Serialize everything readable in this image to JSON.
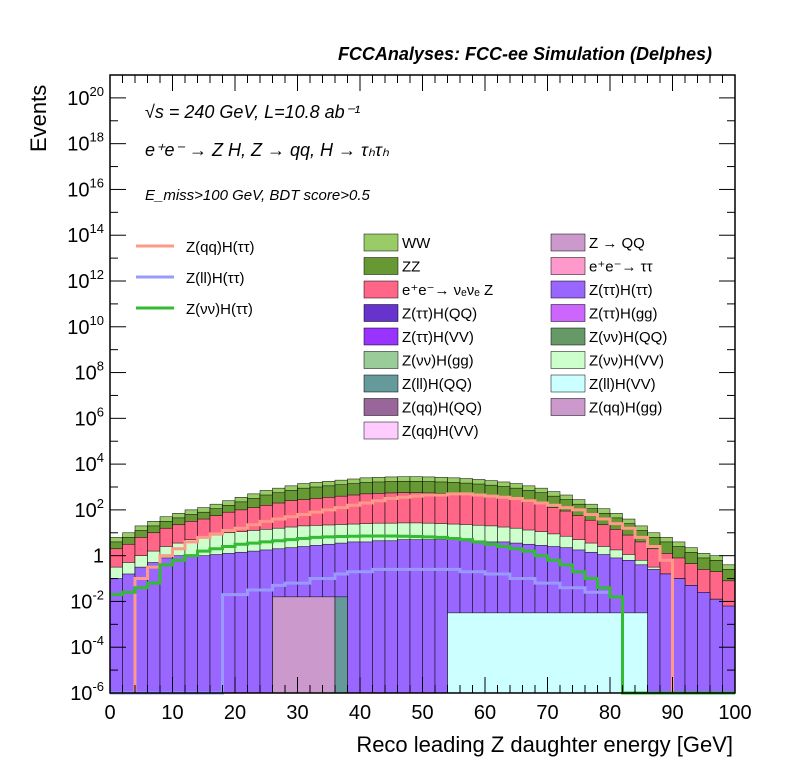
{
  "chart_data": {
    "type": "bar",
    "stacked": true,
    "title": "FCCAnalyses: FCC-ee Simulation (Delphes)",
    "annotations": [
      "√s = 240 GeV, L=10.8 ab⁻¹",
      "e⁺e⁻ → Z H, Z → qq, H → τₕτₕ",
      "E_miss>100 GeV, BDT score>0.5"
    ],
    "xlabel": "Reco leading Z daughter energy [GeV]",
    "ylabel": "Events",
    "xlim": [
      0,
      100
    ],
    "ylog": true,
    "ylim_exp": [
      -6,
      21
    ],
    "x_ticks": [
      0,
      10,
      20,
      30,
      40,
      50,
      60,
      70,
      80,
      90,
      100
    ],
    "y_ticks": [
      {
        "exp": -6,
        "label": "10",
        "sup": "-6"
      },
      {
        "exp": -4,
        "label": "10",
        "sup": "-4"
      },
      {
        "exp": -2,
        "label": "10",
        "sup": "-2"
      },
      {
        "exp": 0,
        "label": "1",
        "sup": ""
      },
      {
        "exp": 2,
        "label": "10",
        "sup": "2"
      },
      {
        "exp": 4,
        "label": "10",
        "sup": "4"
      },
      {
        "exp": 6,
        "label": "10",
        "sup": "6"
      },
      {
        "exp": 8,
        "label": "10",
        "sup": "8"
      },
      {
        "exp": 10,
        "label": "10",
        "sup": "10"
      },
      {
        "exp": 12,
        "label": "10",
        "sup": "12"
      },
      {
        "exp": 14,
        "label": "10",
        "sup": "14"
      },
      {
        "exp": 16,
        "label": "10",
        "sup": "16"
      },
      {
        "exp": 18,
        "label": "10",
        "sup": "18"
      },
      {
        "exp": 20,
        "label": "10",
        "sup": "20"
      }
    ],
    "bin_width": 2,
    "legend_position": "top",
    "backgrounds_total_log10": [
      0.8,
      1.0,
      1.3,
      1.5,
      1.7,
      1.85,
      2.0,
      2.1,
      2.25,
      2.4,
      2.55,
      2.7,
      2.85,
      2.95,
      3.05,
      3.15,
      3.2,
      3.25,
      3.3,
      3.35,
      3.4,
      3.42,
      3.44,
      3.45,
      3.45,
      3.44,
      3.42,
      3.4,
      3.37,
      3.33,
      3.28,
      3.22,
      3.15,
      3.05,
      2.95,
      2.8,
      2.65,
      2.45,
      2.25,
      2.05,
      1.85,
      1.6,
      1.3,
      1.0,
      0.8,
      0.6,
      0.35,
      0.1,
      0.0,
      -0.4
    ],
    "backgrounds": [
      {
        "name": "Z(ττ)H(ττ)",
        "color": "#9966ff",
        "log10": [
          -1.0,
          -0.8,
          -0.5,
          -0.3,
          -0.1,
          0.0,
          0.0,
          0.0,
          0.05,
          0.1,
          0.15,
          0.2,
          0.25,
          0.3,
          0.35,
          0.4,
          0.45,
          0.5,
          0.55,
          0.6,
          0.6,
          0.65,
          0.65,
          0.7,
          0.7,
          0.7,
          0.7,
          0.7,
          0.65,
          0.65,
          0.6,
          0.6,
          0.55,
          0.5,
          0.45,
          0.4,
          0.35,
          0.25,
          0.15,
          0.05,
          -0.1,
          -0.2,
          -0.4,
          -0.6,
          -0.8,
          -1.0,
          -1.3,
          -1.6,
          -1.9,
          -2.2
        ]
      },
      {
        "name": "Z(νν)H(VV)",
        "color": "#ccffcc",
        "log10": [
          -0.5,
          -0.3,
          0.0,
          0.2,
          0.4,
          0.55,
          0.7,
          0.8,
          0.9,
          1.0,
          1.05,
          1.1,
          1.15,
          1.2,
          1.25,
          1.3,
          1.32,
          1.34,
          1.36,
          1.38,
          1.4,
          1.42,
          1.42,
          1.43,
          1.43,
          1.42,
          1.4,
          1.38,
          1.36,
          1.33,
          1.3,
          1.25,
          1.2,
          1.12,
          1.05,
          0.95,
          0.85,
          0.7,
          0.55,
          0.4,
          0.25,
          0.05,
          -0.2,
          -0.5,
          -0.8,
          -1.0,
          -1.3,
          -1.6,
          -1.9,
          -2.3
        ]
      },
      {
        "name": "e⁺e⁻→ νₑνₑ Z",
        "color": "#ff6688",
        "log10": [
          0.3,
          0.5,
          0.8,
          1.0,
          1.2,
          1.35,
          1.5,
          1.6,
          1.75,
          1.9,
          2.0,
          2.1,
          2.2,
          2.3,
          2.4,
          2.45,
          2.5,
          2.55,
          2.6,
          2.65,
          2.7,
          2.72,
          2.74,
          2.75,
          2.75,
          2.74,
          2.72,
          2.7,
          2.67,
          2.63,
          2.58,
          2.52,
          2.45,
          2.35,
          2.25,
          2.1,
          1.95,
          1.75,
          1.55,
          1.35,
          1.15,
          0.9,
          0.6,
          0.3,
          0.1,
          -0.1,
          -0.35,
          -0.6,
          -0.7,
          -1.1
        ]
      },
      {
        "name": "ZZ",
        "color": "#669933",
        "log10": [
          0.6,
          0.8,
          1.1,
          1.3,
          1.5,
          1.65,
          1.8,
          1.9,
          2.05,
          2.2,
          2.35,
          2.5,
          2.65,
          2.75,
          2.85,
          2.95,
          3.0,
          3.05,
          3.1,
          3.15,
          3.2,
          3.22,
          3.24,
          3.25,
          3.25,
          3.24,
          3.22,
          3.2,
          3.17,
          3.13,
          3.08,
          3.02,
          2.95,
          2.85,
          2.75,
          2.6,
          2.45,
          2.25,
          2.05,
          1.85,
          1.65,
          1.4,
          1.1,
          0.8,
          0.6,
          0.4,
          0.15,
          -0.1,
          -0.2,
          -0.6
        ]
      },
      {
        "name": "WW",
        "color": "#99cc66",
        "log10": [
          0.8,
          1.0,
          1.3,
          1.5,
          1.7,
          1.85,
          2.0,
          2.1,
          2.25,
          2.4,
          2.55,
          2.7,
          2.85,
          2.95,
          3.05,
          3.15,
          3.2,
          3.25,
          3.3,
          3.35,
          3.4,
          3.42,
          3.44,
          3.45,
          3.45,
          3.44,
          3.42,
          3.4,
          3.37,
          3.33,
          3.28,
          3.22,
          3.15,
          3.05,
          2.95,
          2.8,
          2.65,
          2.45,
          2.25,
          2.05,
          1.85,
          1.6,
          1.3,
          1.0,
          0.8,
          0.6,
          0.35,
          0.1,
          0.0,
          -0.4
        ]
      }
    ],
    "low_components": [
      {
        "name": "Z(ll)H(VV)",
        "color": "#ccffff",
        "start": 54,
        "end": 86,
        "log10": -2.5
      },
      {
        "name": "Z(qq)H(gg)",
        "color": "#cc99cc",
        "start": 26,
        "end": 36,
        "log10": -1.8
      },
      {
        "name": "Z(ll)H(QQ)",
        "color": "#669999",
        "start": 36,
        "end": 38,
        "log10": -1.8
      }
    ],
    "legend": [
      {
        "name": "WW",
        "color": "#99cc66"
      },
      {
        "name": "Z → QQ",
        "color": "#cc99cc"
      },
      {
        "name": "ZZ",
        "color": "#669933"
      },
      {
        "name": "e⁺e⁻→ ττ",
        "color": "#ff99cc"
      },
      {
        "name": "e⁺e⁻→ νₑνₑ Z",
        "color": "#ff6688"
      },
      {
        "name": "Z(ττ)H(ττ)",
        "color": "#9966ff"
      },
      {
        "name": "Z(ττ)H(QQ)",
        "color": "#6633cc"
      },
      {
        "name": "Z(ττ)H(gg)",
        "color": "#cc66ff"
      },
      {
        "name": "Z(ττ)H(VV)",
        "color": "#9933ff"
      },
      {
        "name": "Z(νν)H(QQ)",
        "color": "#669966"
      },
      {
        "name": "Z(νν)H(gg)",
        "color": "#99cc99"
      },
      {
        "name": "Z(νν)H(VV)",
        "color": "#ccffcc"
      },
      {
        "name": "Z(ll)H(QQ)",
        "color": "#669999"
      },
      {
        "name": "Z(ll)H(VV)",
        "color": "#ccffff"
      },
      {
        "name": "Z(qq)H(QQ)",
        "color": "#996699"
      },
      {
        "name": "Z(qq)H(gg)",
        "color": "#cc99cc"
      },
      {
        "name": "Z(qq)H(VV)",
        "color": "#ffccff"
      }
    ],
    "signals": [
      {
        "name": "Z(qq)H(ττ)",
        "color": "#ff9988",
        "log10": [
          -7,
          -7,
          -1.0,
          -0.5,
          0.0,
          0.3,
          0.6,
          0.8,
          0.95,
          1.1,
          1.2,
          1.35,
          1.5,
          1.6,
          1.7,
          1.8,
          1.9,
          2.0,
          2.1,
          2.2,
          2.3,
          2.4,
          2.5,
          2.55,
          2.6,
          2.65,
          2.65,
          2.7,
          2.7,
          2.65,
          2.6,
          2.55,
          2.5,
          2.4,
          2.3,
          2.2,
          2.1,
          2.0,
          1.8,
          1.6,
          1.4,
          1.2,
          0.8,
          0.4,
          -0.2,
          -7,
          -7,
          -7,
          -7,
          -7
        ]
      },
      {
        "name": "Z(ll)H(ττ)",
        "color": "#9999ff",
        "log10": [
          -7,
          -7,
          -7,
          -7,
          -7,
          -7,
          -7,
          -7,
          -7,
          -1.7,
          -1.7,
          -1.5,
          -1.5,
          -1.3,
          -1.2,
          -1.2,
          -1.0,
          -1.0,
          -0.8,
          -0.7,
          -0.7,
          -0.6,
          -0.6,
          -0.6,
          -0.6,
          -0.6,
          -0.6,
          -0.6,
          -0.7,
          -0.7,
          -0.8,
          -0.8,
          -1.0,
          -1.0,
          -1.2,
          -1.2,
          -1.4,
          -1.4,
          -1.6,
          -1.6,
          -1.8,
          -7,
          -7,
          -7,
          -7,
          -7,
          -7,
          -7,
          -7,
          -7
        ]
      },
      {
        "name": "Z(νν)H(ττ)",
        "color": "#33bb33",
        "log10": [
          -1.7,
          -1.6,
          -1.4,
          -1.2,
          -0.4,
          -0.2,
          0.0,
          0.2,
          0.3,
          0.4,
          0.5,
          0.55,
          0.6,
          0.65,
          0.7,
          0.75,
          0.8,
          0.82,
          0.84,
          0.85,
          0.86,
          0.86,
          0.86,
          0.85,
          0.84,
          0.82,
          0.8,
          0.75,
          0.7,
          0.6,
          0.5,
          0.4,
          0.3,
          0.2,
          0.0,
          -0.2,
          -0.4,
          -0.7,
          -1.0,
          -1.4,
          -1.8,
          -7,
          -7,
          -7,
          -7,
          -7,
          -7,
          -7,
          -7,
          -7
        ]
      }
    ]
  }
}
